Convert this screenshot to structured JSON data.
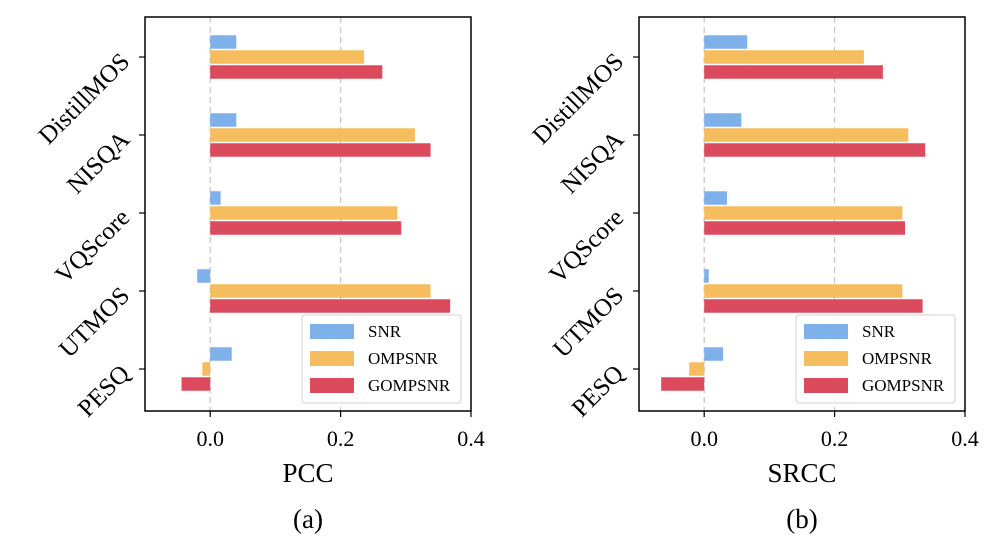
{
  "chart_data": [
    {
      "type": "bar",
      "orientation": "horizontal",
      "categories": [
        "DistillMOS",
        "NISQA",
        "VQScore",
        "UTMOS",
        "PESQ"
      ],
      "series": [
        {
          "name": "SNR",
          "color": "#7EB0EA",
          "values": [
            0.04,
            0.04,
            0.016,
            -0.02,
            0.033
          ]
        },
        {
          "name": "OMPSNR",
          "color": "#F5BD5E",
          "values": [
            0.236,
            0.314,
            0.287,
            0.338,
            -0.012
          ]
        },
        {
          "name": "GOMPSNR",
          "color": "#DC4A5E",
          "values": [
            0.264,
            0.338,
            0.293,
            0.368,
            -0.044
          ]
        }
      ],
      "xlabel": "PCC",
      "xlim": [
        -0.1,
        0.4
      ],
      "xticks": [
        "0.0",
        "0.2",
        "0.4"
      ],
      "xtick_values": [
        0.0,
        0.2,
        0.4
      ],
      "reference_lines": [
        0.0,
        0.2
      ],
      "legend": "lower-right",
      "caption": "(a)"
    },
    {
      "type": "bar",
      "orientation": "horizontal",
      "categories": [
        "DistillMOS",
        "NISQA",
        "VQScore",
        "UTMOS",
        "PESQ"
      ],
      "series": [
        {
          "name": "SNR",
          "color": "#7EB0EA",
          "values": [
            0.066,
            0.057,
            0.035,
            0.007,
            0.029
          ]
        },
        {
          "name": "OMPSNR",
          "color": "#F5BD5E",
          "values": [
            0.245,
            0.313,
            0.304,
            0.304,
            -0.023
          ]
        },
        {
          "name": "GOMPSNR",
          "color": "#DC4A5E",
          "values": [
            0.274,
            0.339,
            0.308,
            0.335,
            -0.066
          ]
        }
      ],
      "xlabel": "SRCC",
      "xlim": [
        -0.1,
        0.4
      ],
      "xticks": [
        "0.0",
        "0.2",
        "0.4"
      ],
      "xtick_values": [
        0.0,
        0.2,
        0.4
      ],
      "reference_lines": [
        0.0,
        0.2
      ],
      "legend": "lower-right",
      "caption": "(b)"
    }
  ]
}
